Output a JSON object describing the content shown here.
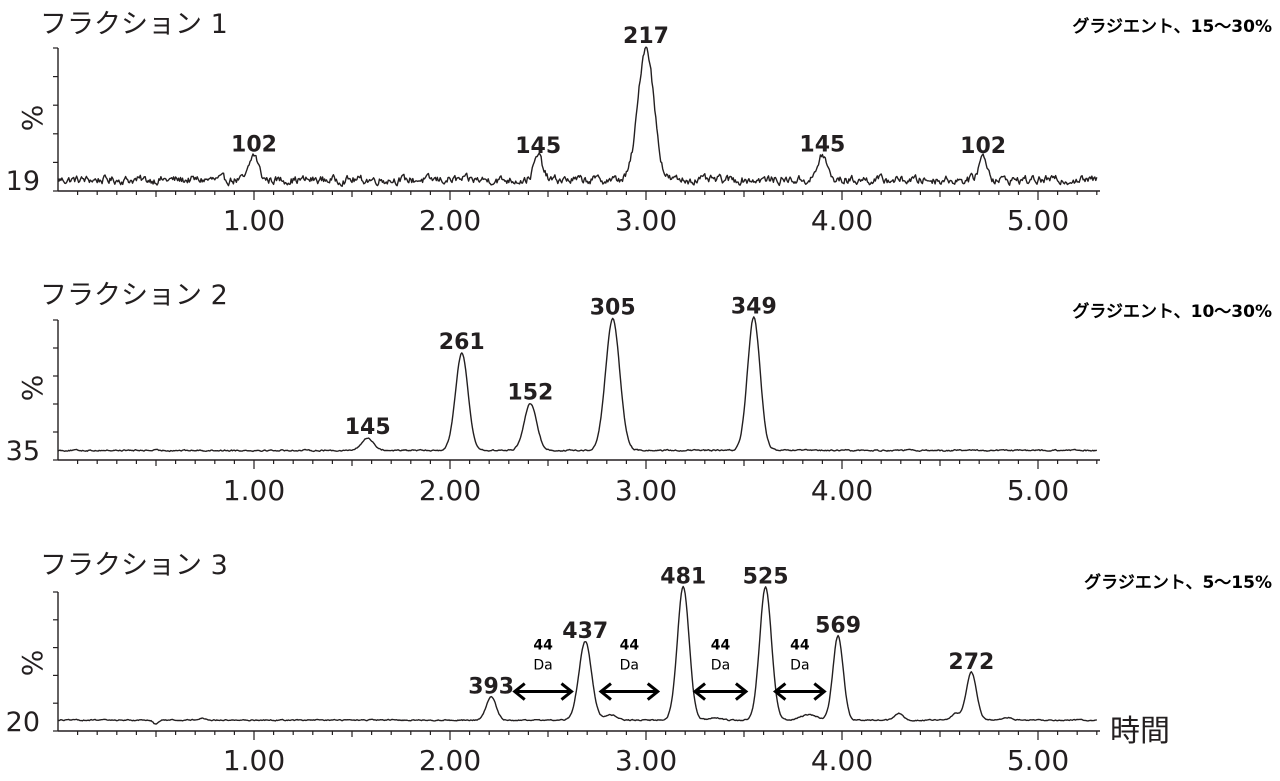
{
  "chart_data": [
    {
      "type": "line",
      "title": "フラクション 1",
      "gradient": "グラジエント、15～30%",
      "ylabel": "%",
      "y_min_label": "19",
      "xlim": [
        0,
        5.3
      ],
      "ylim": [
        0,
        100
      ],
      "x_ticks": [
        "1.00",
        "2.00",
        "3.00",
        "4.00",
        "5.00"
      ],
      "baseline": 8,
      "noise": 3.5,
      "peaks": [
        {
          "t": 1.0,
          "h": 18,
          "w": 0.022
        },
        {
          "t": 2.45,
          "h": 17,
          "w": 0.022
        },
        {
          "t": 3.0,
          "h": 96,
          "w": 0.04
        },
        {
          "t": 3.9,
          "h": 18,
          "w": 0.022
        },
        {
          "t": 4.72,
          "h": 17,
          "w": 0.022
        }
      ],
      "peak_labels": [
        {
          "t": 1.0,
          "h": 18,
          "text": "102"
        },
        {
          "t": 2.45,
          "h": 17,
          "text": "145"
        },
        {
          "t": 3.0,
          "h": 96,
          "text": "217"
        },
        {
          "t": 3.9,
          "h": 18,
          "text": "145"
        },
        {
          "t": 4.72,
          "h": 17,
          "text": "102"
        }
      ],
      "arrows": []
    },
    {
      "type": "line",
      "title": "フラクション 2",
      "gradient": "グラジエント、10～30%",
      "ylabel": "%",
      "y_min_label": "35",
      "xlim": [
        0,
        5.3
      ],
      "ylim": [
        0,
        100
      ],
      "x_ticks": [
        "1.00",
        "2.00",
        "3.00",
        "4.00",
        "5.00"
      ],
      "baseline": 7,
      "noise": 0.6,
      "peaks": [
        {
          "t": 1.58,
          "h": 9,
          "w": 0.03
        },
        {
          "t": 2.06,
          "h": 71,
          "w": 0.032
        },
        {
          "t": 2.41,
          "h": 34,
          "w": 0.032
        },
        {
          "t": 2.83,
          "h": 96,
          "w": 0.036
        },
        {
          "t": 3.55,
          "h": 97,
          "w": 0.032
        }
      ],
      "peak_labels": [
        {
          "t": 1.58,
          "h": 9,
          "text": "145"
        },
        {
          "t": 2.06,
          "h": 71,
          "text": "261"
        },
        {
          "t": 2.41,
          "h": 34,
          "text": "152"
        },
        {
          "t": 2.83,
          "h": 96,
          "text": "305"
        },
        {
          "t": 3.55,
          "h": 97,
          "text": "349"
        }
      ],
      "arrows": []
    },
    {
      "type": "line",
      "title": "フラクション 3",
      "gradient": "グラジエント、5～15%",
      "ylabel": "%",
      "y_min_label": "20",
      "xlabel": "時間",
      "xlim": [
        0,
        5.3
      ],
      "ylim": [
        0,
        100
      ],
      "x_ticks": [
        "1.00",
        "2.00",
        "3.00",
        "4.00",
        "5.00"
      ],
      "baseline": 8,
      "noise": 0.5,
      "peaks": [
        {
          "t": 0.5,
          "h": -3,
          "w": 0.012
        },
        {
          "t": 0.73,
          "h": 1.5,
          "w": 0.02
        },
        {
          "t": 2.21,
          "h": 17,
          "w": 0.025
        },
        {
          "t": 2.69,
          "h": 58,
          "w": 0.032
        },
        {
          "t": 2.82,
          "h": 4,
          "w": 0.03
        },
        {
          "t": 3.19,
          "h": 98,
          "w": 0.03
        },
        {
          "t": 3.35,
          "h": 2,
          "w": 0.03
        },
        {
          "t": 3.61,
          "h": 98,
          "w": 0.03
        },
        {
          "t": 3.83,
          "h": 4,
          "w": 0.04
        },
        {
          "t": 3.98,
          "h": 62,
          "w": 0.026
        },
        {
          "t": 4.29,
          "h": 5,
          "w": 0.02
        },
        {
          "t": 4.58,
          "h": 5,
          "w": 0.02
        },
        {
          "t": 4.66,
          "h": 35,
          "w": 0.026
        },
        {
          "t": 4.85,
          "h": 2,
          "w": 0.02
        }
      ],
      "peak_labels": [
        {
          "t": 2.21,
          "h": 17,
          "text": "393"
        },
        {
          "t": 2.69,
          "h": 58,
          "text": "437"
        },
        {
          "t": 3.19,
          "h": 98,
          "text": "481"
        },
        {
          "t": 3.61,
          "h": 98,
          "text": "525"
        },
        {
          "t": 3.98,
          "h": 62,
          "text": "569"
        },
        {
          "t": 4.66,
          "h": 35,
          "text": "272"
        }
      ],
      "arrows": [
        {
          "x1": 2.32,
          "x2": 2.63,
          "y": 29,
          "text_top": "44",
          "text_bottom": "Da"
        },
        {
          "x1": 2.76,
          "x2": 3.07,
          "y": 29,
          "text_top": "44",
          "text_bottom": "Da"
        },
        {
          "x1": 3.24,
          "x2": 3.52,
          "y": 29,
          "text_top": "44",
          "text_bottom": "Da"
        },
        {
          "x1": 3.65,
          "x2": 3.92,
          "y": 29,
          "text_top": "44",
          "text_bottom": "Da"
        }
      ]
    }
  ]
}
